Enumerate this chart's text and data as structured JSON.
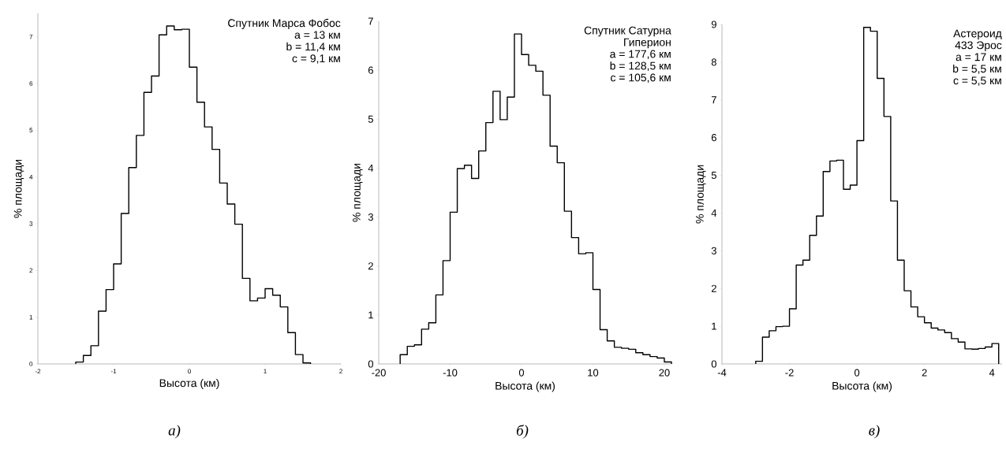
{
  "chart_data": [
    {
      "type": "histogram",
      "xlabel": "Высота (км)",
      "ylabel": "% площади",
      "color": "#000000",
      "bins": [
        -1.5,
        -1.4,
        -1.3,
        -1.2,
        -1.1,
        -1.0,
        -0.9,
        -0.8,
        -0.7,
        -0.6,
        -0.5,
        -0.4,
        -0.3,
        -0.2,
        -0.1,
        0.0,
        0.1,
        0.2,
        0.3,
        0.4,
        0.5,
        0.6,
        0.7,
        0.8,
        0.9,
        1.0,
        1.1,
        1.2,
        1.3,
        1.4,
        1.5,
        1.6
      ],
      "values": [
        0.04,
        0.18,
        0.39,
        1.13,
        1.59,
        2.14,
        3.22,
        4.2,
        4.89,
        5.81,
        6.16,
        7.04,
        7.23,
        7.15,
        7.16,
        6.35,
        5.6,
        5.07,
        4.59,
        3.87,
        3.42,
        2.99,
        1.83,
        1.35,
        1.41,
        1.61,
        1.47,
        1.22,
        0.67,
        0.2,
        0.02
      ],
      "xlim": [
        -2,
        2
      ],
      "ylim": [
        0,
        7.5
      ],
      "xticks": [
        -2,
        -1,
        0,
        1,
        2
      ],
      "yticks": [
        0,
        1,
        2,
        3,
        4,
        5,
        6,
        7
      ],
      "annotations": [
        "Спутник Марса Фобос",
        "a = 13 км",
        "b = 11,4 км",
        "c = 9,1 км",
        "а)"
      ]
    },
    {
      "type": "histogram",
      "xlabel": "Высота (км)",
      "ylabel": "% площади",
      "color": "#000000",
      "bins": [
        -17,
        -16,
        -15,
        -14,
        -13,
        -12,
        -11,
        -10,
        -9,
        -8,
        -7,
        -6,
        -5,
        -4,
        -3,
        -2,
        -1,
        0,
        1,
        2,
        3,
        4,
        5,
        6,
        7,
        8,
        9,
        10,
        11,
        12,
        13,
        14,
        15,
        16,
        17,
        18,
        19,
        20,
        21
      ],
      "values": [
        0.19,
        0.36,
        0.39,
        0.71,
        0.84,
        1.41,
        2.11,
        3.1,
        3.99,
        4.06,
        3.79,
        4.35,
        4.93,
        5.57,
        4.99,
        5.45,
        6.74,
        6.32,
        6.1,
        5.98,
        5.49,
        4.45,
        4.11,
        3.12,
        2.58,
        2.25,
        2.27,
        1.52,
        0.7,
        0.47,
        0.34,
        0.32,
        0.3,
        0.23,
        0.19,
        0.15,
        0.12,
        0.04
      ],
      "xlim": [
        -20,
        21
      ],
      "ylim": [
        0,
        7
      ],
      "xticks": [
        -20,
        -10,
        0,
        10,
        20
      ],
      "yticks": [
        0,
        1,
        2,
        3,
        4,
        5,
        6,
        7
      ],
      "annotations": [
        "Спутник Сатурна",
        "Гиперион",
        "a = 177,6 км",
        "b = 128,5 км",
        "c = 105,6 км",
        "б)"
      ]
    },
    {
      "type": "histogram",
      "xlabel": "Высота (км)",
      "ylabel": "% площади",
      "color": "#000000",
      "bins": [
        -3.0,
        -2.8,
        -2.6,
        -2.4,
        -2.2,
        -2.0,
        -1.8,
        -1.6,
        -1.4,
        -1.2,
        -1.0,
        -0.8,
        -0.6,
        -0.4,
        -0.2,
        0.0,
        0.2,
        0.4,
        0.6,
        0.8,
        1.0,
        1.2,
        1.4,
        1.6,
        1.8,
        2.0,
        2.2,
        2.4,
        2.6,
        2.8,
        3.0,
        3.2,
        3.4,
        3.6,
        3.8,
        4.0,
        4.2
      ],
      "values": [
        0.07,
        0.71,
        0.88,
        0.99,
        1.0,
        1.46,
        2.62,
        2.75,
        3.41,
        3.92,
        5.1,
        5.38,
        5.4,
        4.63,
        4.74,
        5.92,
        8.92,
        8.82,
        7.57,
        6.56,
        4.32,
        2.75,
        1.94,
        1.51,
        1.25,
        1.09,
        0.95,
        0.9,
        0.83,
        0.67,
        0.58,
        0.4,
        0.39,
        0.41,
        0.45,
        0.54
      ],
      "xlim": [
        -4,
        4.3
      ],
      "ylim": [
        0,
        9
      ],
      "xticks": [
        -4,
        -2,
        0,
        2,
        4
      ],
      "yticks": [
        0,
        1,
        2,
        3,
        4,
        5,
        6,
        7,
        8,
        9
      ],
      "annotations": [
        "Астероид",
        "433 Эрос",
        "a = 17 км",
        "b = 5,5 км",
        "c = 5,5 км",
        "в)"
      ]
    }
  ]
}
